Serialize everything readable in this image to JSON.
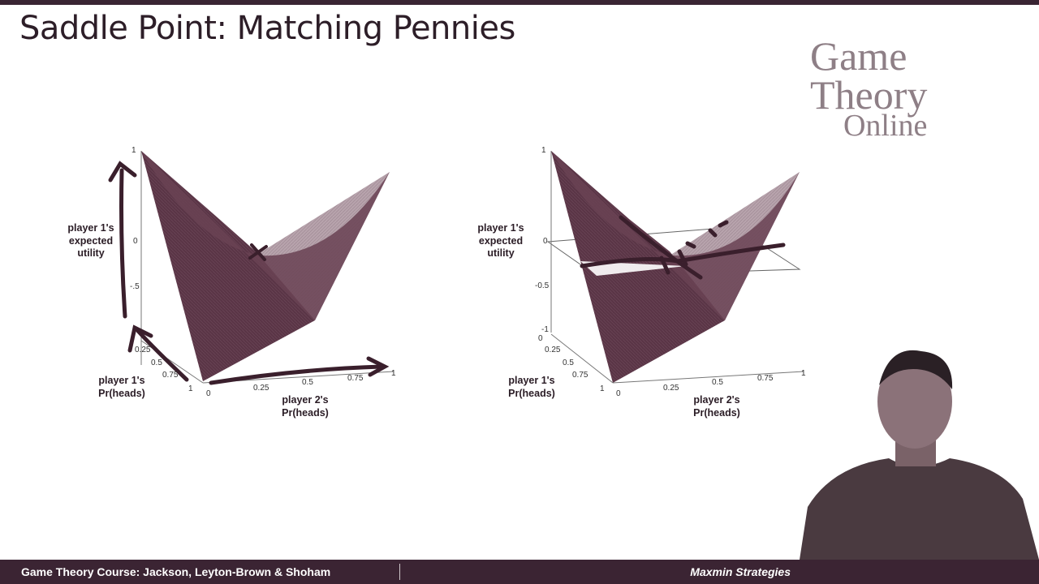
{
  "slide": {
    "title": "Saddle Point: Matching Pennies",
    "logo": {
      "line1": "Game",
      "line2": "Theory",
      "line3": "Online"
    }
  },
  "plots": {
    "left": {
      "zlabel": "player 1's expected utility",
      "ylabel": "player 1's Pr(heads)",
      "xlabel": "player 2's Pr(heads)",
      "z_ticks": [
        "1",
        "0",
        "-.5"
      ],
      "y_ticks": [
        "0.25",
        "0.5",
        "0.75",
        "1"
      ],
      "x_ticks": [
        "0",
        "0.25",
        "0.5",
        "0.75",
        "1"
      ]
    },
    "right": {
      "zlabel": "player 1's expected utility",
      "ylabel": "player 1's Pr(heads)",
      "xlabel": "player 2's Pr(heads)",
      "z_ticks": [
        "1",
        "0",
        "-0.5",
        "-1"
      ],
      "y_ticks": [
        "0",
        "0.25",
        "0.5",
        "0.75",
        "1"
      ],
      "x_ticks": [
        "0",
        "0.25",
        "0.5",
        "0.75",
        "1"
      ]
    }
  },
  "footer": {
    "course": "Game Theory Course: Jackson, Leyton-Brown & Shoham",
    "topic": "Maxmin Strategies"
  },
  "colors": {
    "surface_dark": "#5a3546",
    "surface_light": "#b7a3ac",
    "ink": "#3a1f2c",
    "footer_bg": "#3b2433"
  }
}
